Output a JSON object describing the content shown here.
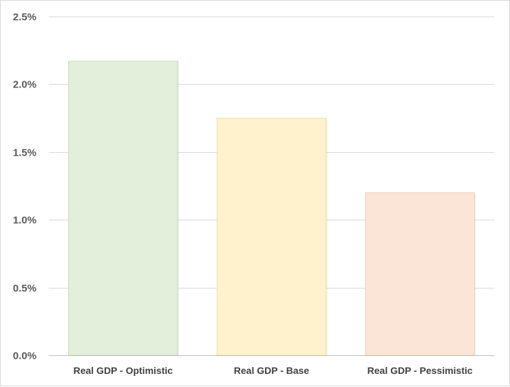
{
  "chart_data": {
    "type": "bar",
    "categories": [
      "Real GDP - Optimistic",
      "Real GDP - Base",
      "Real GDP - Pessimistic"
    ],
    "values": [
      0.0217,
      0.0175,
      0.012
    ],
    "bar_colors": [
      "#e2efda",
      "#fff2cc",
      "#fbe5d6"
    ],
    "bar_edge_colors": [
      "#c6d9b8",
      "#f0dfa8",
      "#efcfba"
    ],
    "grid_color": "#d9d9d9",
    "axis_color": "#bfbfbf",
    "ylim": [
      0,
      0.025
    ],
    "yticks": [
      0,
      0.005,
      0.01,
      0.015,
      0.02,
      0.025
    ],
    "ytick_labels": [
      "0.0%",
      "0.5%",
      "1.0%",
      "1.5%",
      "2.0%",
      "2.5%"
    ],
    "grid": true,
    "legend": "none",
    "title": "",
    "xlabel": "",
    "ylabel": ""
  }
}
